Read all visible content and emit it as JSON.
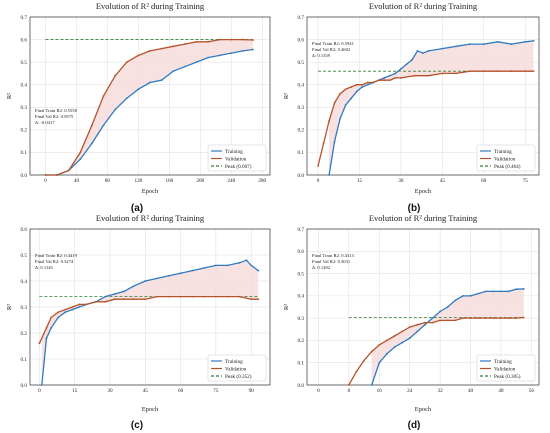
{
  "colors": {
    "train": "#2f7bbf",
    "val": "#b5532a",
    "peak": "#2e7d32",
    "fill": "#f6d9d9",
    "grid": "#dddddd"
  },
  "chart_data": [
    {
      "type": "line",
      "panel_label": "(a)",
      "title": "Evolution of R² during Training",
      "xlabel": "Epoch",
      "ylabel": "R²",
      "xlim": [
        -20,
        290
      ],
      "ylim": [
        0,
        0.7
      ],
      "xticks": [
        "0",
        "40",
        "80",
        "120",
        "160",
        "200",
        "240",
        "280"
      ],
      "yticks": [
        "0.0",
        "0.1",
        "0.2",
        "0.3",
        "0.4",
        "0.5",
        "0.6",
        "0.7"
      ],
      "xtick_values": [
        0,
        40,
        80,
        120,
        160,
        200,
        240,
        280
      ],
      "ytick_values": [
        0,
        0.1,
        0.2,
        0.3,
        0.4,
        0.5,
        0.6,
        0.7
      ],
      "grid": true,
      "legend_position": "bottom-right",
      "annotation": [
        "Final Train R2: 0.5558",
        "Final Val R2: 0.5975",
        "Δ: -0.0417"
      ],
      "peak_label": "Peak (0.607)",
      "series": [
        {
          "name": "Training",
          "x": [
            0,
            15,
            30,
            45,
            60,
            75,
            90,
            105,
            120,
            135,
            150,
            165,
            180,
            195,
            210,
            225,
            240,
            255,
            268
          ],
          "y": [
            0,
            0,
            0.02,
            0.07,
            0.14,
            0.22,
            0.29,
            0.34,
            0.38,
            0.41,
            0.42,
            0.46,
            0.48,
            0.5,
            0.52,
            0.53,
            0.54,
            0.55,
            0.556
          ]
        },
        {
          "name": "Validation",
          "x": [
            0,
            15,
            30,
            45,
            60,
            75,
            90,
            105,
            120,
            135,
            150,
            165,
            180,
            195,
            210,
            225,
            240,
            255,
            268
          ],
          "y": [
            0,
            0,
            0.02,
            0.1,
            0.22,
            0.35,
            0.44,
            0.5,
            0.53,
            0.55,
            0.56,
            0.57,
            0.58,
            0.59,
            0.59,
            0.6,
            0.6,
            0.6,
            0.598
          ]
        }
      ]
    },
    {
      "type": "line",
      "panel_label": "(b)",
      "title": "Evolution of R² during Training",
      "xlabel": "Epoch",
      "ylabel": "R²",
      "xlim": [
        -4,
        80
      ],
      "ylim": [
        0,
        0.7
      ],
      "xticks": [
        "0",
        "15",
        "30",
        "45",
        "60",
        "75"
      ],
      "yticks": [
        "0.0",
        "0.1",
        "0.2",
        "0.3",
        "0.4",
        "0.5",
        "0.6",
        "0.7"
      ],
      "xtick_values": [
        0,
        15,
        30,
        45,
        60,
        75
      ],
      "ytick_values": [
        0,
        0.1,
        0.2,
        0.3,
        0.4,
        0.5,
        0.6,
        0.7
      ],
      "grid": true,
      "legend_position": "bottom-right",
      "annotation": [
        "Final Train R2: 0.5941",
        "Final Val R2: 0.4602",
        "Δ: 0.1339"
      ],
      "peak_label": "Peak (0.464)",
      "series": [
        {
          "name": "Training",
          "x": [
            4,
            6,
            8,
            10,
            12,
            14,
            16,
            18,
            20,
            22,
            24,
            26,
            28,
            30,
            32,
            34,
            36,
            38,
            40,
            45,
            50,
            55,
            60,
            65,
            70,
            75,
            78
          ],
          "y": [
            0,
            0.15,
            0.25,
            0.31,
            0.34,
            0.37,
            0.39,
            0.4,
            0.41,
            0.42,
            0.43,
            0.44,
            0.45,
            0.47,
            0.49,
            0.51,
            0.55,
            0.54,
            0.55,
            0.56,
            0.57,
            0.58,
            0.58,
            0.59,
            0.58,
            0.59,
            0.594
          ]
        },
        {
          "name": "Validation",
          "x": [
            0,
            2,
            4,
            6,
            8,
            10,
            12,
            14,
            16,
            18,
            20,
            22,
            24,
            26,
            28,
            30,
            35,
            40,
            45,
            50,
            55,
            60,
            65,
            70,
            75,
            78
          ],
          "y": [
            0.04,
            0.14,
            0.24,
            0.32,
            0.36,
            0.38,
            0.39,
            0.4,
            0.4,
            0.41,
            0.41,
            0.42,
            0.42,
            0.42,
            0.43,
            0.43,
            0.44,
            0.44,
            0.45,
            0.45,
            0.46,
            0.46,
            0.46,
            0.46,
            0.46,
            0.46
          ]
        }
      ]
    },
    {
      "type": "line",
      "panel_label": "(c)",
      "title": "Evolution of R² during Training",
      "xlabel": "Epoch",
      "ylabel": "R²",
      "xlim": [
        -4,
        98
      ],
      "ylim": [
        0,
        0.6
      ],
      "xticks": [
        "0",
        "15",
        "30",
        "45",
        "60",
        "75",
        "90"
      ],
      "yticks": [
        "0.0",
        "0.1",
        "0.2",
        "0.3",
        "0.4",
        "0.5",
        "0.6"
      ],
      "xtick_values": [
        0,
        15,
        30,
        45,
        60,
        75,
        90
      ],
      "ytick_values": [
        0,
        0.1,
        0.2,
        0.3,
        0.4,
        0.5,
        0.6
      ],
      "grid": true,
      "legend_position": "bottom-right",
      "annotation": [
        "Final Train R2: 0.4419",
        "Final Val R2: 0.3274",
        "Δ: 0.1145"
      ],
      "peak_label": "Peak (0.352)",
      "series": [
        {
          "name": "Training",
          "x": [
            1,
            3,
            5,
            8,
            11,
            14,
            17,
            20,
            24,
            28,
            32,
            36,
            40,
            45,
            50,
            55,
            60,
            65,
            70,
            75,
            80,
            85,
            88,
            90,
            93
          ],
          "y": [
            0,
            0.18,
            0.22,
            0.26,
            0.28,
            0.29,
            0.3,
            0.31,
            0.32,
            0.34,
            0.35,
            0.36,
            0.38,
            0.4,
            0.41,
            0.42,
            0.43,
            0.44,
            0.45,
            0.46,
            0.46,
            0.47,
            0.48,
            0.46,
            0.44
          ]
        },
        {
          "name": "Validation",
          "x": [
            0,
            3,
            5,
            8,
            11,
            14,
            17,
            20,
            24,
            28,
            32,
            36,
            40,
            45,
            50,
            55,
            60,
            65,
            70,
            75,
            80,
            85,
            90,
            93
          ],
          "y": [
            0.16,
            0.22,
            0.26,
            0.28,
            0.29,
            0.3,
            0.31,
            0.31,
            0.32,
            0.32,
            0.33,
            0.33,
            0.33,
            0.33,
            0.34,
            0.34,
            0.34,
            0.34,
            0.34,
            0.34,
            0.34,
            0.34,
            0.33,
            0.33
          ]
        }
      ]
    },
    {
      "type": "line",
      "panel_label": "(d)",
      "title": "Evolution of R² during Training",
      "xlabel": "Epoch",
      "ylabel": "R²",
      "xlim": [
        -3,
        58
      ],
      "ylim": [
        0,
        0.7
      ],
      "xticks": [
        "0",
        "8",
        "16",
        "24",
        "32",
        "40",
        "48",
        "56"
      ],
      "yticks": [
        "0.0",
        "0.1",
        "0.2",
        "0.3",
        "0.4",
        "0.5",
        "0.6",
        "0.7"
      ],
      "xtick_values": [
        0,
        8,
        16,
        24,
        32,
        40,
        48,
        56
      ],
      "ytick_values": [
        0,
        0.1,
        0.2,
        0.3,
        0.4,
        0.5,
        0.6,
        0.7
      ],
      "grid": true,
      "legend_position": "bottom-right",
      "annotation": [
        "Final Train R2: 0.4313",
        "Final Val R2: 0.3031",
        "Δ: 0.1282"
      ],
      "peak_label": "Peak (0.305)",
      "series": [
        {
          "name": "Training",
          "x": [
            14,
            16,
            18,
            20,
            22,
            24,
            26,
            28,
            30,
            32,
            34,
            36,
            38,
            40,
            42,
            44,
            46,
            48,
            50,
            52,
            54
          ],
          "y": [
            0,
            0.1,
            0.14,
            0.17,
            0.19,
            0.21,
            0.24,
            0.27,
            0.3,
            0.33,
            0.35,
            0.38,
            0.4,
            0.4,
            0.41,
            0.42,
            0.42,
            0.42,
            0.42,
            0.43,
            0.431
          ]
        },
        {
          "name": "Validation",
          "x": [
            8,
            10,
            12,
            14,
            16,
            18,
            20,
            22,
            24,
            26,
            28,
            30,
            32,
            34,
            36,
            38,
            40,
            42,
            44,
            46,
            48,
            50,
            52,
            54
          ],
          "y": [
            0,
            0.06,
            0.11,
            0.15,
            0.18,
            0.2,
            0.22,
            0.24,
            0.26,
            0.27,
            0.28,
            0.28,
            0.29,
            0.29,
            0.29,
            0.3,
            0.3,
            0.3,
            0.3,
            0.3,
            0.3,
            0.3,
            0.3,
            0.303
          ]
        }
      ]
    }
  ]
}
